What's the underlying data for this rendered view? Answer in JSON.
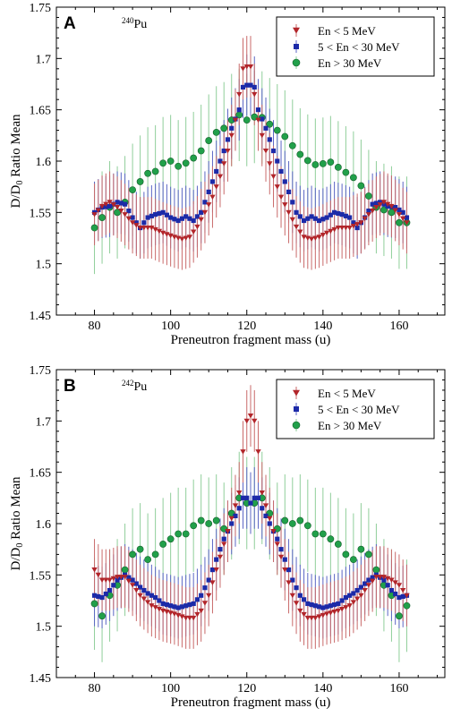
{
  "chart_data": [
    {
      "type": "scatter",
      "panel_letter": "A",
      "isotope_mass": "240",
      "isotope_symbol": "Pu",
      "xlabel": "Preneutron fragment mass (u)",
      "ylabel_main": "D/D",
      "ylabel_sub": "0",
      "ylabel_rest": " Ratio Mean",
      "xlim": [
        70,
        172
      ],
      "ylim": [
        1.45,
        1.75
      ],
      "xticks": [
        80,
        100,
        120,
        140,
        160
      ],
      "yticks": [
        1.45,
        1.5,
        1.55,
        1.6,
        1.65,
        1.7,
        1.75
      ],
      "legend_position": "top-right",
      "colors": {
        "low": "#b2252a",
        "mid": "#1c2aa8",
        "high": "#21a04a",
        "low_err": "#c96a6a",
        "mid_err": "#5b66c4",
        "high_err": "#8fce9a"
      },
      "legend": [
        "En < 5 MeV",
        "5 < En < 30 MeV",
        "En > 30 MeV"
      ],
      "series_knots": {
        "low": [
          [
            80,
            1.548
          ],
          [
            82,
            1.556
          ],
          [
            84,
            1.56
          ],
          [
            86,
            1.555
          ],
          [
            88,
            1.548
          ],
          [
            90,
            1.54
          ],
          [
            92,
            1.535
          ],
          [
            95,
            1.535
          ],
          [
            98,
            1.53
          ],
          [
            101,
            1.526
          ],
          [
            103,
            1.524
          ],
          [
            105,
            1.526
          ],
          [
            107,
            1.536
          ],
          [
            109,
            1.55
          ],
          [
            111,
            1.565
          ],
          [
            113,
            1.585
          ],
          [
            115,
            1.61
          ],
          [
            117,
            1.64
          ],
          [
            118,
            1.665
          ],
          [
            119,
            1.69
          ],
          [
            120,
            1.692
          ],
          [
            121,
            1.692
          ],
          [
            122,
            1.665
          ],
          [
            123,
            1.64
          ],
          [
            125,
            1.61
          ],
          [
            127,
            1.585
          ],
          [
            129,
            1.565
          ],
          [
            131,
            1.55
          ],
          [
            133,
            1.536
          ],
          [
            135,
            1.526
          ],
          [
            137,
            1.524
          ],
          [
            139,
            1.526
          ],
          [
            141,
            1.53
          ],
          [
            144,
            1.535
          ],
          [
            147,
            1.535
          ],
          [
            150,
            1.54
          ],
          [
            152,
            1.548
          ],
          [
            154,
            1.555
          ],
          [
            156,
            1.56
          ],
          [
            158,
            1.556
          ],
          [
            160,
            1.548
          ],
          [
            162,
            1.54
          ]
        ],
        "mid": [
          [
            80,
            1.55
          ],
          [
            82,
            1.555
          ],
          [
            84,
            1.556
          ],
          [
            86,
            1.56
          ],
          [
            88,
            1.558
          ],
          [
            90,
            1.545
          ],
          [
            92,
            1.535
          ],
          [
            94,
            1.545
          ],
          [
            96,
            1.548
          ],
          [
            98,
            1.55
          ],
          [
            100,
            1.545
          ],
          [
            102,
            1.542
          ],
          [
            104,
            1.546
          ],
          [
            106,
            1.542
          ],
          [
            108,
            1.55
          ],
          [
            110,
            1.57
          ],
          [
            112,
            1.59
          ],
          [
            114,
            1.61
          ],
          [
            116,
            1.632
          ],
          [
            118,
            1.65
          ],
          [
            119,
            1.672
          ],
          [
            120,
            1.674
          ],
          [
            121,
            1.674
          ],
          [
            122,
            1.672
          ],
          [
            123,
            1.65
          ],
          [
            125,
            1.632
          ],
          [
            127,
            1.61
          ],
          [
            129,
            1.59
          ],
          [
            131,
            1.57
          ],
          [
            133,
            1.55
          ],
          [
            135,
            1.542
          ],
          [
            137,
            1.546
          ],
          [
            139,
            1.542
          ],
          [
            141,
            1.545
          ],
          [
            143,
            1.55
          ],
          [
            145,
            1.548
          ],
          [
            147,
            1.545
          ],
          [
            149,
            1.535
          ],
          [
            151,
            1.545
          ],
          [
            153,
            1.558
          ],
          [
            155,
            1.56
          ],
          [
            157,
            1.556
          ],
          [
            159,
            1.555
          ],
          [
            161,
            1.55
          ],
          [
            162,
            1.545
          ]
        ],
        "high": [
          [
            80,
            1.535
          ],
          [
            82,
            1.545
          ],
          [
            84,
            1.555
          ],
          [
            86,
            1.55
          ],
          [
            88,
            1.56
          ],
          [
            90,
            1.572
          ],
          [
            92,
            1.58
          ],
          [
            94,
            1.588
          ],
          [
            96,
            1.59
          ],
          [
            98,
            1.598
          ],
          [
            100,
            1.6
          ],
          [
            102,
            1.595
          ],
          [
            104,
            1.598
          ],
          [
            106,
            1.603
          ],
          [
            108,
            1.61
          ],
          [
            110,
            1.62
          ],
          [
            112,
            1.628
          ],
          [
            114,
            1.632
          ],
          [
            116,
            1.64
          ],
          [
            118,
            1.645
          ],
          [
            119,
            1.643
          ],
          [
            120,
            1.64
          ],
          [
            121,
            1.64
          ],
          [
            122,
            1.643
          ],
          [
            123,
            1.645
          ],
          [
            125,
            1.64
          ],
          [
            127,
            1.632
          ],
          [
            129,
            1.628
          ],
          [
            131,
            1.62
          ],
          [
            133,
            1.61
          ],
          [
            135,
            1.603
          ],
          [
            137,
            1.598
          ],
          [
            139,
            1.595
          ],
          [
            141,
            1.6
          ],
          [
            143,
            1.598
          ],
          [
            145,
            1.59
          ],
          [
            147,
            1.588
          ],
          [
            149,
            1.58
          ],
          [
            151,
            1.572
          ],
          [
            153,
            1.56
          ],
          [
            155,
            1.55
          ],
          [
            157,
            1.555
          ],
          [
            159,
            1.545
          ],
          [
            161,
            1.535
          ],
          [
            162,
            1.54
          ]
        ]
      },
      "error_half_width": {
        "low": 0.03,
        "mid": 0.03,
        "high": 0.045
      },
      "x_start": 80,
      "x_end": 162
    },
    {
      "type": "scatter",
      "panel_letter": "B",
      "isotope_mass": "242",
      "isotope_symbol": "Pu",
      "xlabel": "Preneutron fragment mass (u)",
      "ylabel_main": "D/D",
      "ylabel_sub": "0",
      "ylabel_rest": " Ratio Mean",
      "xlim": [
        70,
        172
      ],
      "ylim": [
        1.45,
        1.75
      ],
      "xticks": [
        80,
        100,
        120,
        140,
        160
      ],
      "yticks": [
        1.45,
        1.5,
        1.55,
        1.6,
        1.65,
        1.7,
        1.75
      ],
      "legend_position": "top-right",
      "colors": {
        "low": "#b2252a",
        "mid": "#1c2aa8",
        "high": "#21a04a",
        "low_err": "#c96a6a",
        "mid_err": "#5b66c4",
        "high_err": "#8fce9a"
      },
      "legend": [
        "En < 5 MeV",
        "5 < En < 30 MeV",
        "En > 30 MeV"
      ],
      "series_knots": {
        "low": [
          [
            80,
            1.555
          ],
          [
            82,
            1.545
          ],
          [
            84,
            1.545
          ],
          [
            86,
            1.548
          ],
          [
            88,
            1.548
          ],
          [
            90,
            1.54
          ],
          [
            92,
            1.53
          ],
          [
            95,
            1.52
          ],
          [
            98,
            1.515
          ],
          [
            101,
            1.512
          ],
          [
            104,
            1.508
          ],
          [
            106,
            1.508
          ],
          [
            108,
            1.515
          ],
          [
            110,
            1.53
          ],
          [
            112,
            1.555
          ],
          [
            114,
            1.58
          ],
          [
            116,
            1.605
          ],
          [
            118,
            1.63
          ],
          [
            119,
            1.67
          ],
          [
            120,
            1.7
          ],
          [
            121,
            1.705
          ],
          [
            122,
            1.7
          ],
          [
            123,
            1.67
          ],
          [
            124,
            1.63
          ],
          [
            126,
            1.605
          ],
          [
            128,
            1.58
          ],
          [
            130,
            1.555
          ],
          [
            132,
            1.53
          ],
          [
            134,
            1.515
          ],
          [
            136,
            1.508
          ],
          [
            138,
            1.508
          ],
          [
            141,
            1.512
          ],
          [
            144,
            1.515
          ],
          [
            147,
            1.52
          ],
          [
            150,
            1.53
          ],
          [
            152,
            1.54
          ],
          [
            154,
            1.548
          ],
          [
            156,
            1.548
          ],
          [
            158,
            1.545
          ],
          [
            160,
            1.54
          ],
          [
            162,
            1.53
          ]
        ],
        "mid": [
          [
            80,
            1.53
          ],
          [
            82,
            1.528
          ],
          [
            84,
            1.535
          ],
          [
            86,
            1.545
          ],
          [
            88,
            1.55
          ],
          [
            90,
            1.545
          ],
          [
            92,
            1.538
          ],
          [
            94,
            1.532
          ],
          [
            96,
            1.528
          ],
          [
            98,
            1.522
          ],
          [
            100,
            1.52
          ],
          [
            102,
            1.518
          ],
          [
            104,
            1.52
          ],
          [
            106,
            1.522
          ],
          [
            108,
            1.53
          ],
          [
            110,
            1.545
          ],
          [
            112,
            1.565
          ],
          [
            114,
            1.585
          ],
          [
            116,
            1.6
          ],
          [
            118,
            1.615
          ],
          [
            119,
            1.625
          ],
          [
            120,
            1.625
          ],
          [
            121,
            1.62
          ],
          [
            122,
            1.625
          ],
          [
            123,
            1.625
          ],
          [
            124,
            1.615
          ],
          [
            126,
            1.6
          ],
          [
            128,
            1.585
          ],
          [
            130,
            1.565
          ],
          [
            132,
            1.545
          ],
          [
            134,
            1.53
          ],
          [
            136,
            1.522
          ],
          [
            138,
            1.52
          ],
          [
            140,
            1.518
          ],
          [
            142,
            1.52
          ],
          [
            144,
            1.522
          ],
          [
            146,
            1.528
          ],
          [
            148,
            1.532
          ],
          [
            150,
            1.538
          ],
          [
            152,
            1.545
          ],
          [
            154,
            1.55
          ],
          [
            156,
            1.545
          ],
          [
            158,
            1.535
          ],
          [
            160,
            1.528
          ],
          [
            162,
            1.53
          ]
        ],
        "high": [
          [
            80,
            1.522
          ],
          [
            82,
            1.51
          ],
          [
            84,
            1.53
          ],
          [
            86,
            1.54
          ],
          [
            88,
            1.555
          ],
          [
            90,
            1.57
          ],
          [
            92,
            1.575
          ],
          [
            94,
            1.565
          ],
          [
            96,
            1.57
          ],
          [
            98,
            1.58
          ],
          [
            100,
            1.585
          ],
          [
            102,
            1.59
          ],
          [
            104,
            1.59
          ],
          [
            106,
            1.598
          ],
          [
            108,
            1.603
          ],
          [
            110,
            1.6
          ],
          [
            112,
            1.603
          ],
          [
            114,
            1.595
          ],
          [
            116,
            1.61
          ],
          [
            118,
            1.625
          ],
          [
            119,
            1.62
          ],
          [
            120,
            1.62
          ],
          [
            121,
            1.62
          ],
          [
            122,
            1.62
          ],
          [
            123,
            1.62
          ],
          [
            124,
            1.625
          ],
          [
            126,
            1.61
          ],
          [
            128,
            1.595
          ],
          [
            130,
            1.603
          ],
          [
            132,
            1.6
          ],
          [
            134,
            1.603
          ],
          [
            136,
            1.598
          ],
          [
            138,
            1.59
          ],
          [
            140,
            1.59
          ],
          [
            142,
            1.585
          ],
          [
            144,
            1.58
          ],
          [
            146,
            1.57
          ],
          [
            148,
            1.565
          ],
          [
            150,
            1.575
          ],
          [
            152,
            1.57
          ],
          [
            154,
            1.555
          ],
          [
            156,
            1.54
          ],
          [
            158,
            1.53
          ],
          [
            160,
            1.51
          ],
          [
            162,
            1.52
          ]
        ]
      },
      "error_half_width": {
        "low": 0.03,
        "mid": 0.03,
        "high": 0.045
      },
      "x_start": 80,
      "x_end": 162
    }
  ]
}
